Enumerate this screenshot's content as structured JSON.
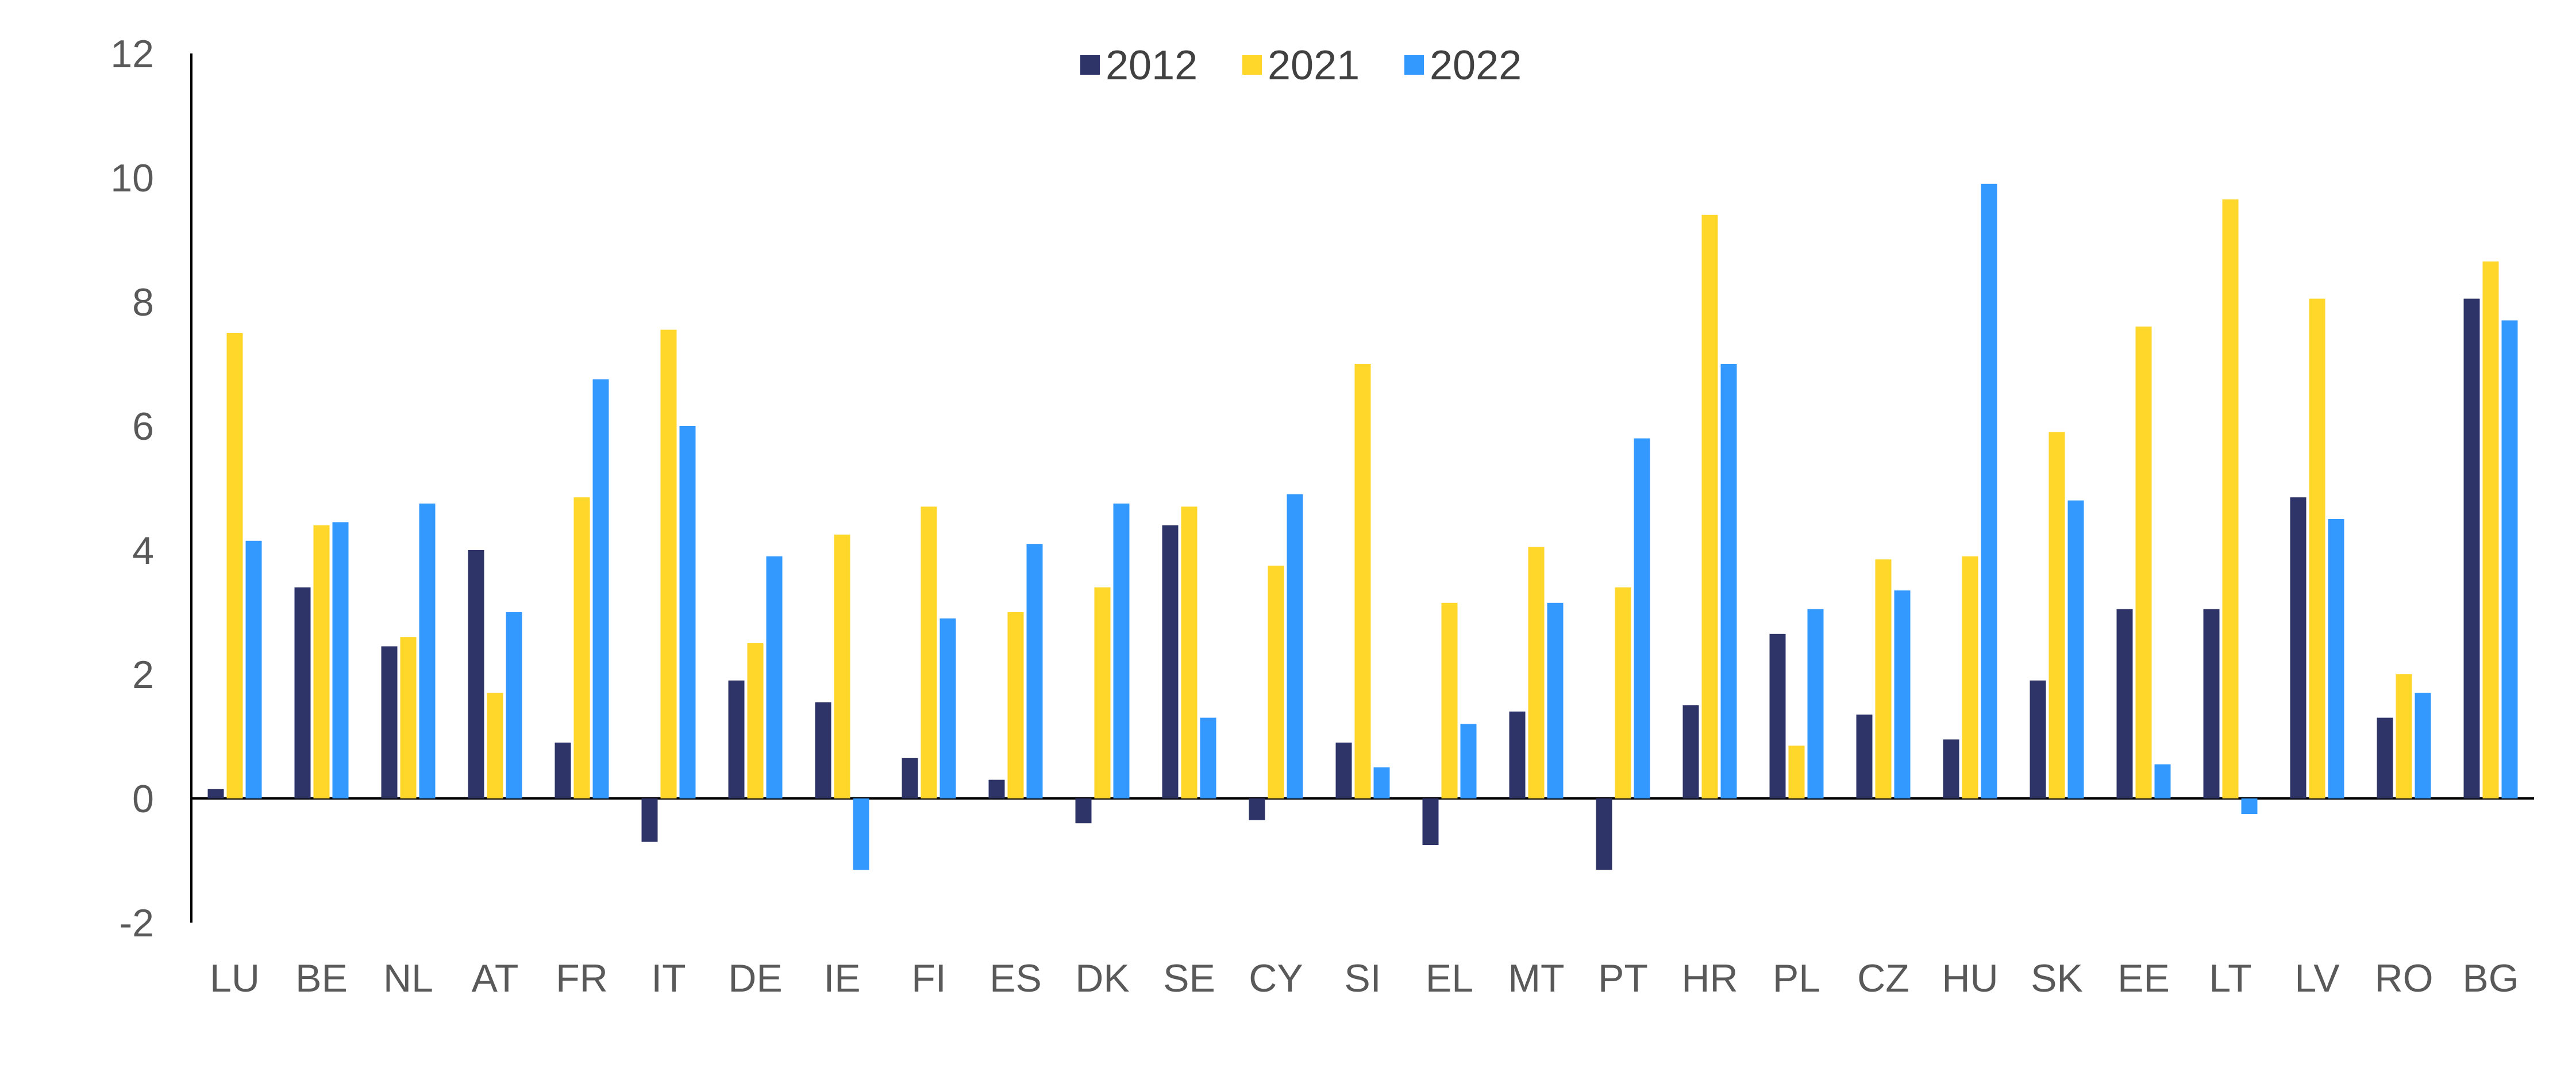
{
  "chart_data": {
    "type": "bar",
    "title": "",
    "xlabel": "",
    "ylabel": "",
    "ylim": [
      -2,
      12
    ],
    "yticks": [
      -2,
      0,
      2,
      4,
      6,
      8,
      10,
      12
    ],
    "grid": false,
    "legend_position": "top-center",
    "categories": [
      "LU",
      "BE",
      "NL",
      "AT",
      "FR",
      "IT",
      "DE",
      "IE",
      "FI",
      "ES",
      "DK",
      "SE",
      "CY",
      "SI",
      "EL",
      "MT",
      "PT",
      "HR",
      "PL",
      "CZ",
      "HU",
      "SK",
      "EE",
      "LT",
      "LV",
      "RO",
      "BG"
    ],
    "series": [
      {
        "name": "2012",
        "color": "#2e3468",
        "values": [
          0.15,
          3.4,
          2.45,
          4.0,
          0.9,
          -0.7,
          1.9,
          1.55,
          0.65,
          0.3,
          -0.4,
          4.4,
          -0.35,
          0.9,
          -0.75,
          1.4,
          -1.15,
          1.5,
          2.65,
          1.35,
          0.95,
          1.9,
          3.05,
          3.05,
          4.85,
          1.3,
          8.05
        ]
      },
      {
        "name": "2021",
        "color": "#ffd62a",
        "values": [
          7.5,
          4.4,
          2.6,
          1.7,
          4.85,
          7.55,
          2.5,
          4.25,
          4.7,
          3.0,
          3.4,
          4.7,
          3.75,
          7.0,
          3.15,
          4.05,
          3.4,
          9.4,
          0.85,
          3.85,
          3.9,
          5.9,
          7.6,
          9.65,
          8.05,
          2.0,
          8.65
        ]
      },
      {
        "name": "2022",
        "color": "#3399ff",
        "values": [
          4.15,
          4.45,
          4.75,
          3.0,
          6.75,
          6.0,
          3.9,
          -1.15,
          2.9,
          4.1,
          4.75,
          1.3,
          4.9,
          0.5,
          1.2,
          3.15,
          5.8,
          7.0,
          3.05,
          3.35,
          9.9,
          4.8,
          0.55,
          -0.25,
          4.5,
          1.7,
          7.7
        ]
      }
    ]
  }
}
